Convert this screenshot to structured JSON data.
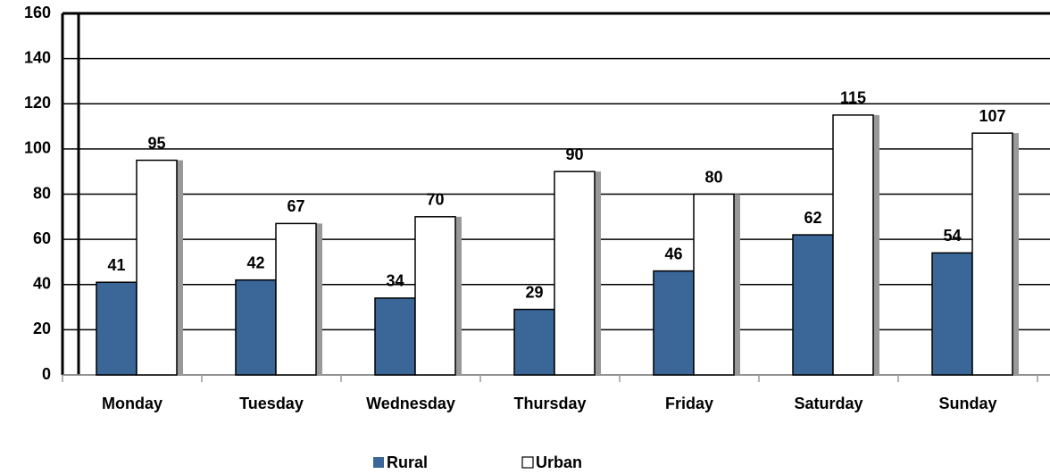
{
  "chart_data": {
    "type": "bar",
    "categories": [
      "Monday",
      "Tuesday",
      "Wednesday",
      "Thursday",
      "Friday",
      "Saturday",
      "Sunday"
    ],
    "series": [
      {
        "name": "Rural",
        "color": "#3a6698",
        "values": [
          41,
          42,
          34,
          29,
          46,
          62,
          54
        ]
      },
      {
        "name": "Urban",
        "color": "#ffffff",
        "values": [
          95,
          67,
          70,
          90,
          80,
          115,
          107
        ]
      }
    ],
    "ylim": [
      0,
      160
    ],
    "yticks": [
      0,
      20,
      40,
      60,
      80,
      100,
      120,
      140,
      160
    ],
    "grid": true,
    "legend": "bottom"
  }
}
